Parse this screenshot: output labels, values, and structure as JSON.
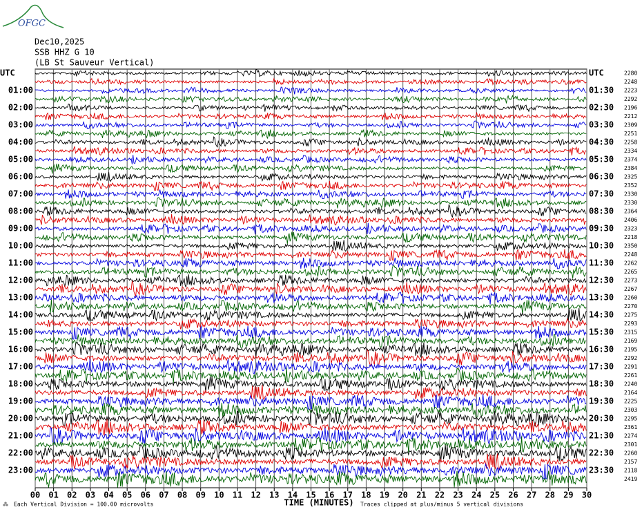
{
  "logo": "OFGC",
  "header": {
    "date": "Dec10,2025",
    "station": "SSB HHZ G 10",
    "location": "(LB St Sauveur Vertical)"
  },
  "left_labels": [
    "UTC",
    "01:00",
    "02:00",
    "03:00",
    "04:00",
    "05:00",
    "06:00",
    "07:00",
    "08:00",
    "09:00",
    "10:00",
    "11:00",
    "12:00",
    "13:00",
    "14:00",
    "15:00",
    "16:00",
    "17:00",
    "18:00",
    "19:00",
    "20:00",
    "21:00",
    "22:00",
    "23:00"
  ],
  "right_labels": [
    "UTC",
    "01:30",
    "02:30",
    "03:30",
    "04:30",
    "05:30",
    "06:30",
    "07:30",
    "08:30",
    "09:30",
    "10:30",
    "11:30",
    "12:30",
    "13:30",
    "14:30",
    "15:30",
    "16:30",
    "17:30",
    "18:30",
    "19:30",
    "20:30",
    "21:30",
    "22:30",
    "23:30"
  ],
  "row_values": [
    2280,
    2248,
    2223,
    2292,
    2196,
    2212,
    2309,
    2251,
    2258,
    2334,
    2374,
    2384,
    2325,
    2352,
    2330,
    2330,
    2364,
    2406,
    2323,
    2218,
    2350,
    2248,
    2262,
    2265,
    2273,
    2267,
    2260,
    2270,
    2275,
    2293,
    2315,
    2169,
    2195,
    2292,
    2291,
    2261,
    2240,
    2164,
    2225,
    2303,
    2295,
    2361,
    2274,
    2301,
    2260,
    2157,
    2118,
    2419
  ],
  "x_labels": [
    "00",
    "01",
    "02",
    "03",
    "04",
    "05",
    "06",
    "07",
    "08",
    "09",
    "10",
    "11",
    "12",
    "13",
    "14",
    "15",
    "16",
    "17",
    "18",
    "19",
    "20",
    "21",
    "22",
    "23",
    "24",
    "25",
    "26",
    "27",
    "28",
    "29",
    "30"
  ],
  "x_title": "TIME (MINUTES)",
  "footer": {
    "scale": "Each Vertical Division =  100.00 microvolts",
    "clip": "Traces clipped at plus/minus 5 vertical divisions"
  },
  "trace_colors": [
    "#000000",
    "#e00000",
    "#0000e0",
    "#006400"
  ]
}
